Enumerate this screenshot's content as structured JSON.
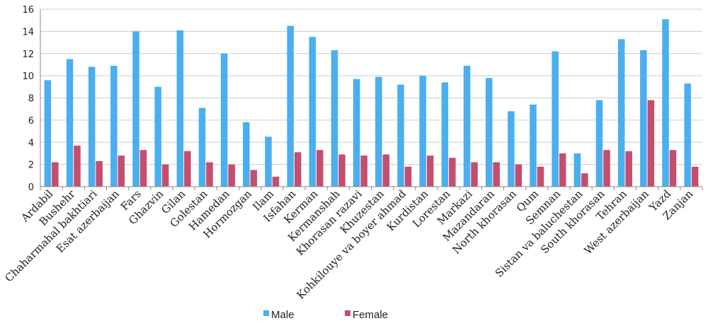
{
  "colors": {
    "male": "#4aaeef",
    "female": "#c44e6e",
    "axis": "#888888",
    "grid": "#cccccc"
  },
  "chart_data": {
    "type": "bar",
    "title": "",
    "xlabel": "",
    "ylabel": "",
    "ylim": [
      0,
      16
    ],
    "yticks": [
      "0",
      "2",
      "4",
      "6",
      "8",
      "10",
      "12",
      "14",
      "16"
    ],
    "grid": true,
    "legend_position": "bottom",
    "categories": [
      "Ardabil",
      "Bushehr",
      "Chaharmahal bakhtiari",
      "Esat azerbaijan",
      "Fars",
      "Ghazvin",
      "Gilan",
      "Golestan",
      "Hamedan",
      "Hormozgan",
      "Ilam",
      "Isfahan",
      "Kerman",
      "Kermanshah",
      "Khorasan razavi",
      "Khuzestan",
      "Kohkilouye va boyer ahmad",
      "Kurdistan",
      "Lorestan",
      "Markazi",
      "Mazandaran",
      "North khorasan",
      "Qum",
      "Semnan",
      "Sistan va baluchestan",
      "South khorasan",
      "Tehran",
      "West azerbaijan",
      "Yazd",
      "Zanjan"
    ],
    "series": [
      {
        "name": "Male",
        "values": [
          9.6,
          11.5,
          10.8,
          10.9,
          14.0,
          9.0,
          14.1,
          7.1,
          12.0,
          5.8,
          4.5,
          14.5,
          13.5,
          12.3,
          9.7,
          9.9,
          9.2,
          10.0,
          9.4,
          10.9,
          9.8,
          6.8,
          7.4,
          12.2,
          3.0,
          7.8,
          13.3,
          12.3,
          15.1,
          9.3
        ]
      },
      {
        "name": "Female",
        "values": [
          2.2,
          3.7,
          2.3,
          2.8,
          3.3,
          2.0,
          3.2,
          2.2,
          2.0,
          1.5,
          0.9,
          3.1,
          3.3,
          2.9,
          2.8,
          2.9,
          1.8,
          2.8,
          2.6,
          2.2,
          2.2,
          2.0,
          1.8,
          3.0,
          1.2,
          3.3,
          3.2,
          7.8,
          3.3,
          1.8
        ]
      }
    ]
  }
}
